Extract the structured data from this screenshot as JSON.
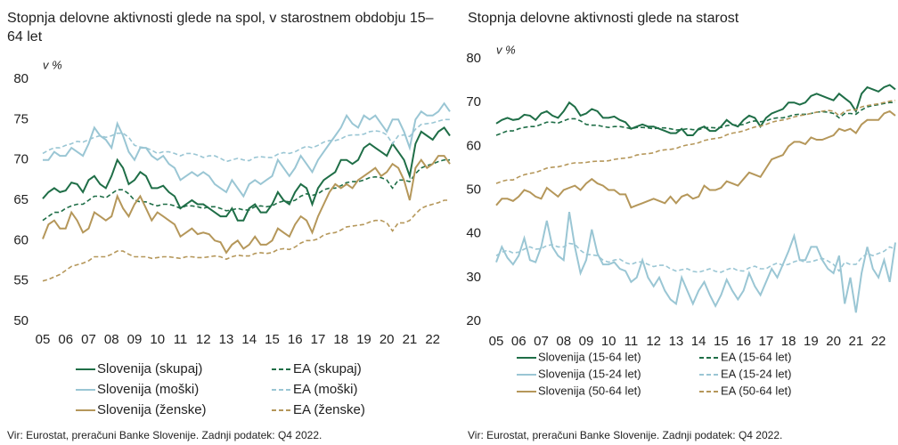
{
  "chart_data": [
    {
      "type": "line",
      "title": "Stopnja delovne aktivnosti glede na spol, v starostnem obdobju 15–64 let",
      "ylabel": "v %",
      "source": "Vir: Eurostat, preračuni Banke Slovenije. Zadnji podatek: Q4 2022.",
      "categories": [
        "05",
        null,
        null,
        null,
        "06",
        null,
        null,
        null,
        "07",
        null,
        null,
        null,
        "08",
        null,
        null,
        null,
        "09",
        null,
        null,
        null,
        "10",
        null,
        null,
        null,
        "11",
        null,
        null,
        null,
        "12",
        null,
        null,
        null,
        "13",
        null,
        null,
        null,
        "14",
        null,
        null,
        null,
        "15",
        null,
        null,
        null,
        "16",
        null,
        null,
        null,
        "17",
        null,
        null,
        null,
        "18",
        null,
        null,
        null,
        "19",
        null,
        null,
        null,
        "20",
        null,
        null,
        null,
        "21",
        null,
        null,
        null,
        "22",
        null,
        null,
        null
      ],
      "ylim": [
        50,
        80
      ],
      "yticks": [
        50,
        55,
        60,
        65,
        70,
        75,
        80
      ],
      "series": [
        {
          "name": "Slovenija (skupaj)",
          "color": "#1f6e47",
          "dashed": false,
          "values": [
            65.2,
            66,
            66.5,
            66,
            66.2,
            67.2,
            67,
            66,
            67.5,
            68,
            67,
            66.5,
            68,
            70,
            69,
            67,
            67.5,
            68.5,
            68,
            66.5,
            66.5,
            66.8,
            66,
            65.5,
            64,
            64.5,
            65,
            64.5,
            64.5,
            64,
            63.5,
            63,
            63,
            64,
            62.5,
            62.5,
            64,
            64.5,
            63.5,
            63.5,
            64.5,
            66,
            65,
            64.5,
            66,
            67,
            66.5,
            64.5,
            66.5,
            67.5,
            68,
            68.5,
            70,
            70,
            69.5,
            70,
            71.5,
            72,
            71.5,
            71,
            70.5,
            72,
            71,
            70,
            68,
            72,
            73.5,
            73,
            72.5,
            73.5,
            74,
            73
          ]
        },
        {
          "name": "EA (skupaj)",
          "color": "#1f6e47",
          "dashed": true,
          "values": [
            62.5,
            63,
            63.5,
            63.5,
            64,
            64.3,
            64.5,
            64.5,
            65,
            65.5,
            65.5,
            65.3,
            65.8,
            66.3,
            66.3,
            65.8,
            65,
            64.8,
            64.8,
            64.5,
            64.3,
            64.5,
            64.5,
            64.3,
            64,
            64.3,
            64.3,
            64.2,
            64,
            64.2,
            64.2,
            64,
            63.7,
            63.8,
            64,
            63.8,
            63.8,
            64.2,
            64.3,
            64.2,
            64.3,
            64.7,
            64.9,
            64.8,
            65,
            65.5,
            65.8,
            65.6,
            65.8,
            66.3,
            66.5,
            66.5,
            66.8,
            67.2,
            67.3,
            67.3,
            67.5,
            67.8,
            67.9,
            67.8,
            67.5,
            66.5,
            67.5,
            67.5,
            67.3,
            68.3,
            69,
            69.3,
            69.5,
            69.8,
            70,
            70
          ]
        },
        {
          "name": "Slovenija (moški)",
          "color": "#9ac6d4",
          "dashed": false,
          "values": [
            70,
            70,
            71,
            70.5,
            70.5,
            71.5,
            71,
            70.5,
            72,
            74,
            73,
            72.5,
            71.5,
            74.5,
            73,
            71,
            70,
            71.5,
            71.5,
            70.5,
            70,
            70.5,
            69.5,
            69,
            67.5,
            68,
            68.5,
            68,
            68.5,
            68,
            67,
            66.5,
            66,
            67.5,
            66.5,
            65.5,
            67,
            67.5,
            67,
            67.5,
            68,
            70,
            69,
            68,
            69,
            70.5,
            69.5,
            68.5,
            70,
            71,
            72,
            73,
            74,
            75.5,
            74.5,
            74,
            75.5,
            75,
            75.5,
            74.5,
            73.5,
            75,
            75,
            73.5,
            71.5,
            75,
            76,
            75.5,
            75.5,
            76,
            77,
            76
          ]
        },
        {
          "name": "EA (moški)",
          "color": "#9ac6d4",
          "dashed": true,
          "values": [
            70.8,
            71.2,
            71.5,
            71.5,
            71.8,
            72,
            72.3,
            72.2,
            72.5,
            72.8,
            73,
            72.8,
            73,
            73.3,
            73.3,
            72.8,
            71.8,
            71.6,
            71.5,
            71.2,
            70.8,
            71,
            71,
            70.8,
            70.5,
            70.8,
            70.8,
            70.6,
            70.3,
            70.5,
            70.5,
            70.2,
            69.8,
            70,
            70.2,
            70,
            69.9,
            70.3,
            70.4,
            70.3,
            70.3,
            70.7,
            70.9,
            70.8,
            71,
            71.4,
            71.7,
            71.5,
            71.8,
            72.2,
            72.4,
            72.4,
            72.6,
            73,
            73.1,
            73.1,
            73.2,
            73.5,
            73.6,
            73.5,
            73.1,
            72,
            73,
            73.1,
            72.9,
            73.8,
            74.4,
            74.5,
            74.6,
            74.8,
            75,
            75
          ]
        },
        {
          "name": "Slovenija (ženske)",
          "color": "#b5975a",
          "dashed": false,
          "values": [
            60.2,
            62,
            62.5,
            61.5,
            61.5,
            63.5,
            62.5,
            61,
            61.5,
            63.5,
            63,
            62.5,
            63,
            65.5,
            64,
            63,
            64.5,
            65.5,
            64,
            62.5,
            63.5,
            63,
            62.5,
            62,
            60.5,
            61,
            61.5,
            60.8,
            61,
            60.8,
            60,
            59.8,
            58.5,
            59.5,
            60,
            59,
            59.5,
            60.5,
            59.5,
            59.5,
            60,
            61.5,
            61,
            60.5,
            62,
            63,
            62.5,
            61,
            63,
            64.5,
            66,
            67,
            66.5,
            67,
            66.5,
            67.5,
            68,
            68.5,
            69,
            68,
            68.5,
            69.5,
            69,
            67.5,
            65,
            69,
            70,
            69,
            69.5,
            70.5,
            70.5,
            69.5
          ]
        },
        {
          "name": "EA (ženske)",
          "color": "#b5975a",
          "dashed": true,
          "values": [
            55,
            55.2,
            55.5,
            55.8,
            56.3,
            56.8,
            57,
            57.2,
            57.5,
            58,
            58,
            58,
            58.3,
            58.7,
            58.7,
            58.3,
            58,
            58,
            58,
            57.8,
            57.9,
            58,
            58,
            57.9,
            57.8,
            58,
            58,
            57.9,
            57.9,
            58,
            58.1,
            58,
            57.7,
            58,
            58.2,
            58.1,
            58.1,
            58.4,
            58.5,
            58.4,
            58.5,
            58.9,
            59,
            58.9,
            59.2,
            59.7,
            60,
            60,
            60.2,
            60.7,
            60.9,
            61,
            61.3,
            61.7,
            61.8,
            61.9,
            62,
            62.3,
            62.5,
            62.5,
            62.2,
            61.2,
            62.2,
            62.2,
            62.5,
            63.3,
            64,
            64.3,
            64.5,
            64.7,
            65,
            65
          ]
        }
      ]
    },
    {
      "type": "line",
      "title": "Stopnja delovne aktivnosti glede na starost",
      "ylabel": "v %",
      "source": "Vir: Eurostat, preračuni Banke Slovenije. Zadnji podatek: Q4 2022.",
      "categories": [
        "05",
        null,
        null,
        null,
        "06",
        null,
        null,
        null,
        "07",
        null,
        null,
        null,
        "08",
        null,
        null,
        null,
        "09",
        null,
        null,
        null,
        "10",
        null,
        null,
        null,
        "11",
        null,
        null,
        null,
        "12",
        null,
        null,
        null,
        "13",
        null,
        null,
        null,
        "14",
        null,
        null,
        null,
        "15",
        null,
        null,
        null,
        "16",
        null,
        null,
        null,
        "17",
        null,
        null,
        null,
        "18",
        null,
        null,
        null,
        "19",
        null,
        null,
        null,
        "20",
        null,
        null,
        null,
        "21",
        null,
        null,
        null,
        "22",
        null,
        null,
        null
      ],
      "ylim": [
        20,
        80
      ],
      "yticks": [
        20,
        30,
        40,
        50,
        60,
        70,
        80
      ],
      "series": [
        {
          "name": "Slovenija (15-64 let)",
          "color": "#1f6e47",
          "dashed": false,
          "values": [
            65.2,
            66,
            66.5,
            66,
            66.2,
            67.2,
            67,
            66,
            67.5,
            68,
            67,
            66.5,
            68,
            70,
            69,
            67,
            67.5,
            68.5,
            68,
            66.5,
            66.5,
            66.8,
            66,
            65.5,
            64,
            64.5,
            65,
            64.5,
            64.5,
            64,
            63.5,
            63,
            63,
            64,
            62.5,
            62.5,
            64,
            64.5,
            63.5,
            63.5,
            64.5,
            66,
            65,
            64.5,
            66,
            67,
            66.5,
            64.5,
            66.5,
            67.5,
            68,
            68.5,
            70,
            70,
            69.5,
            70,
            71.5,
            72,
            71.5,
            71,
            70.5,
            72,
            71,
            70,
            68,
            72,
            73.5,
            73,
            72.5,
            73.5,
            74,
            73
          ]
        },
        {
          "name": "EA (15-64 let)",
          "color": "#1f6e47",
          "dashed": true,
          "values": [
            62.5,
            63,
            63.5,
            63.5,
            64,
            64.3,
            64.5,
            64.5,
            65,
            65.5,
            65.5,
            65.3,
            65.8,
            66.3,
            66.3,
            65.8,
            65,
            64.8,
            64.8,
            64.5,
            64.3,
            64.5,
            64.5,
            64.3,
            64,
            64.3,
            64.3,
            64.2,
            64,
            64.2,
            64.2,
            64,
            63.7,
            63.8,
            64,
            63.8,
            63.8,
            64.2,
            64.3,
            64.2,
            64.3,
            64.7,
            64.9,
            64.8,
            65,
            65.5,
            65.8,
            65.6,
            65.8,
            66.3,
            66.5,
            66.5,
            66.8,
            67.2,
            67.3,
            67.3,
            67.5,
            67.8,
            67.9,
            67.8,
            67.5,
            66.5,
            67.5,
            67.5,
            67.3,
            68.3,
            69,
            69.3,
            69.5,
            69.8,
            70,
            70
          ]
        },
        {
          "name": "Slovenija (15-24 let)",
          "color": "#9ac6d4",
          "dashed": false,
          "values": [
            33.5,
            37,
            34.5,
            33,
            35,
            39,
            34,
            33.5,
            37,
            43,
            37,
            35,
            34,
            45,
            37,
            31,
            34,
            41,
            35.5,
            33,
            33,
            33.5,
            32,
            31.5,
            29,
            30,
            34,
            30,
            28,
            30,
            27,
            25,
            24,
            30,
            27,
            24,
            27,
            29,
            26,
            23.5,
            26,
            29.5,
            27,
            25,
            27,
            31,
            28,
            26,
            29,
            32,
            30,
            33,
            36,
            39.5,
            34,
            34,
            37,
            37,
            34,
            32,
            31,
            35,
            24,
            30,
            22,
            31,
            37,
            32,
            30,
            34,
            29,
            38
          ]
        },
        {
          "name": "EA (15-24 let)",
          "color": "#9ac6d4",
          "dashed": true,
          "values": [
            35,
            35.8,
            36.2,
            35.6,
            35.8,
            36.5,
            37,
            36.5,
            36.6,
            37.3,
            37.5,
            37,
            37,
            37.8,
            37.6,
            36.2,
            35.3,
            35.2,
            35,
            34,
            33.5,
            34,
            34.2,
            33.4,
            33,
            33.5,
            33.6,
            33,
            32.5,
            32.8,
            32.8,
            32,
            31.5,
            31.8,
            32,
            31.4,
            31.2,
            31.6,
            32,
            31.4,
            31.2,
            31.8,
            32.2,
            31.6,
            31.5,
            32.2,
            32.6,
            32,
            32,
            32.8,
            33.3,
            32.8,
            33,
            33.6,
            34,
            33.5,
            33.6,
            34,
            34.4,
            33.8,
            33,
            31.5,
            33.5,
            33,
            33,
            34.5,
            35.5,
            35,
            35.5,
            36,
            37,
            36.5
          ]
        },
        {
          "name": "Slovenija (50-64 let)",
          "color": "#b5975a",
          "dashed": false,
          "values": [
            46.5,
            48,
            48,
            47.5,
            48.5,
            50,
            49.5,
            48.5,
            48,
            50.5,
            49.5,
            48.5,
            50,
            50.5,
            51,
            50,
            51.5,
            52.5,
            51.5,
            51,
            50,
            50,
            49,
            49,
            46,
            46.5,
            47,
            47.5,
            48,
            47.5,
            47,
            48.5,
            47,
            48.5,
            49,
            48,
            48.5,
            51,
            50,
            50,
            50.5,
            52,
            51.5,
            51,
            52.5,
            54,
            53.5,
            53,
            55,
            57,
            57.5,
            58,
            60,
            61,
            61,
            60.5,
            62,
            61.5,
            61.5,
            62,
            62.5,
            64,
            63.5,
            64,
            63,
            65,
            66,
            66,
            66,
            67.5,
            68,
            67
          ]
        },
        {
          "name": "EA (50-64 let)",
          "color": "#b5975a",
          "dashed": true,
          "values": [
            51.5,
            52,
            52.3,
            52.3,
            53,
            53.5,
            53.8,
            54,
            54.5,
            55,
            55.2,
            55.3,
            55.6,
            56,
            56.2,
            56.2,
            56.3,
            56.5,
            56.6,
            56.6,
            56.7,
            57,
            57.2,
            57.3,
            57.5,
            58,
            58.2,
            58.3,
            58.5,
            59,
            59.2,
            59.3,
            59.5,
            60,
            60.3,
            60.5,
            60.8,
            61.3,
            61.6,
            61.8,
            62,
            62.6,
            63,
            63.2,
            63.5,
            64,
            64.4,
            64.6,
            65,
            65.5,
            65.8,
            66,
            66.3,
            66.7,
            67,
            67.2,
            67.5,
            67.8,
            68,
            68.2,
            68,
            67,
            68,
            68.3,
            68.3,
            69,
            69.3,
            69.5,
            69.7,
            70,
            70.3,
            70.5
          ]
        }
      ]
    }
  ]
}
